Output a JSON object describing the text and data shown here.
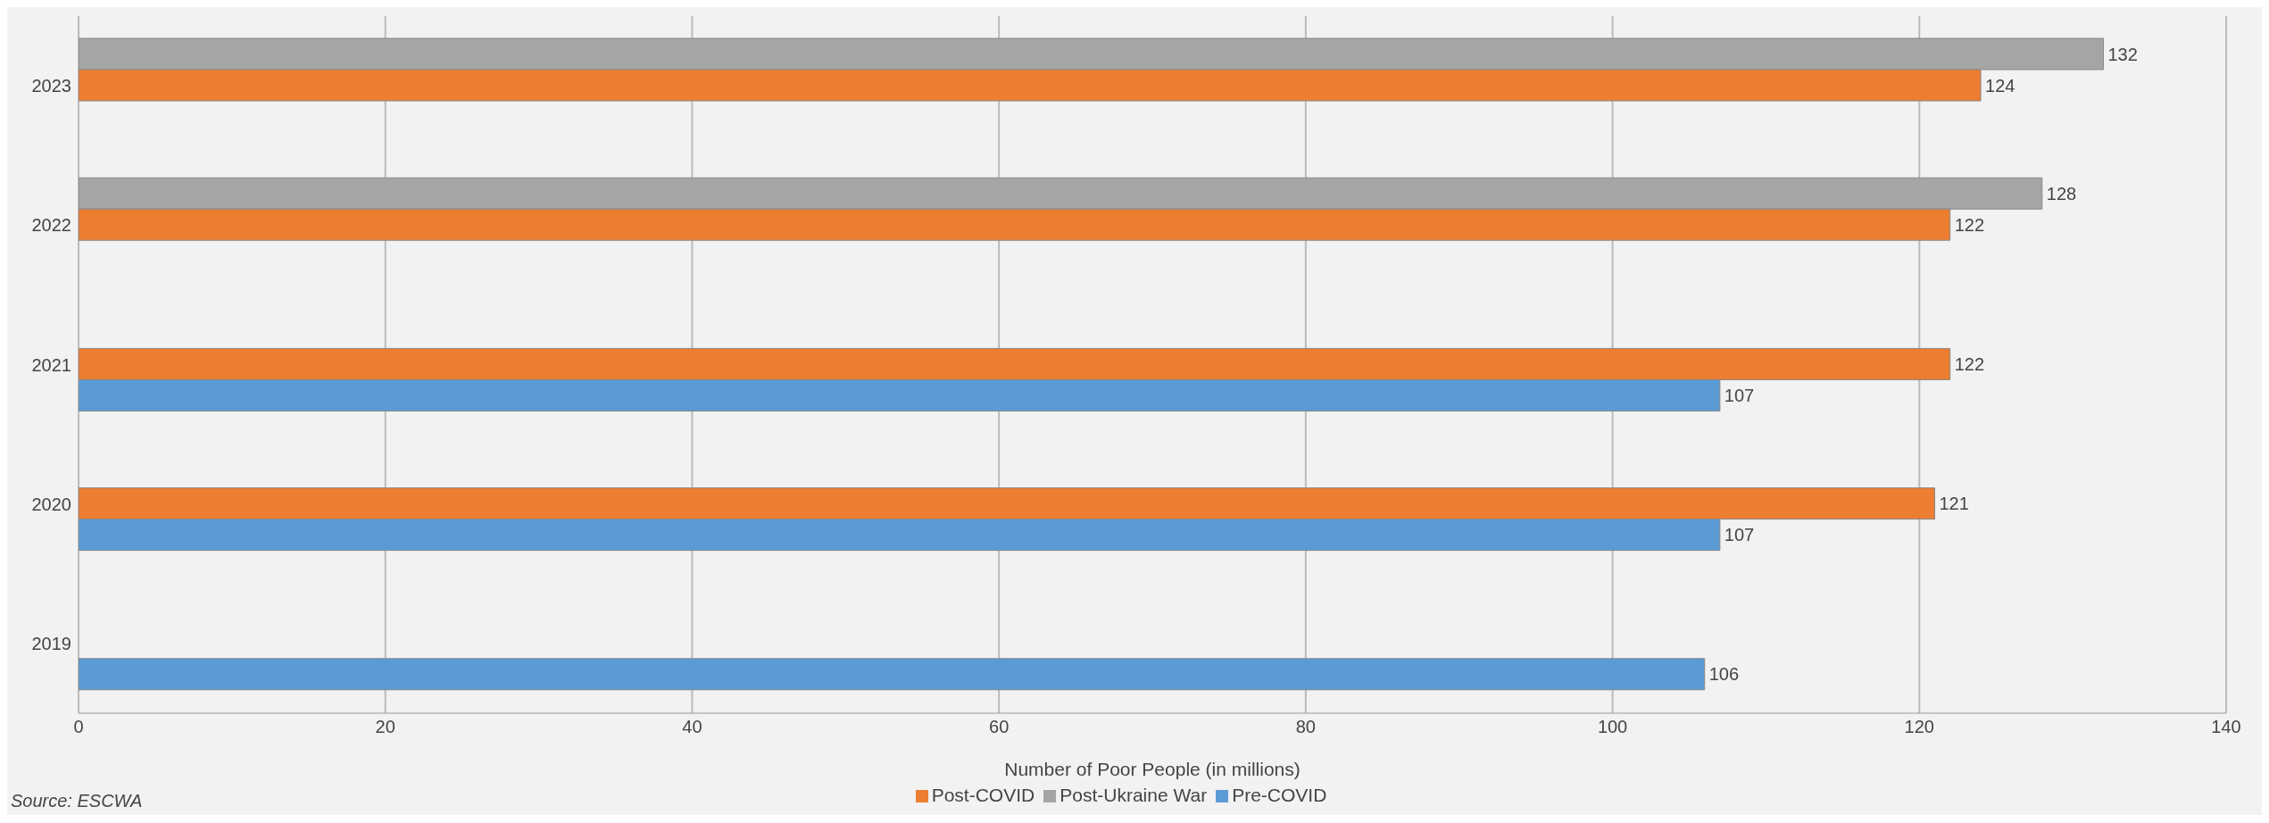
{
  "chart_data": {
    "type": "bar",
    "orientation": "horizontal",
    "xlabel": "Number of Poor People (in millions)",
    "categories": [
      "2023",
      "2022",
      "2021",
      "2020",
      "2019"
    ],
    "series": [
      {
        "name": "Pre-COVID",
        "color": "#5b9bd5",
        "values": [
          null,
          null,
          107,
          107,
          106
        ]
      },
      {
        "name": "Post-COVID",
        "color": "#ed7d31",
        "values": [
          124,
          122,
          122,
          121,
          null
        ]
      },
      {
        "name": "Post-Ukraine War",
        "color": "#a5a5a5",
        "values": [
          132,
          128,
          null,
          null,
          null
        ]
      }
    ],
    "xlim": [
      0,
      140
    ],
    "xticks": [
      0,
      20,
      40,
      60,
      80,
      100,
      120,
      140
    ],
    "grid": "x",
    "legend": "bottom",
    "data_labels": true,
    "annotations": [
      "Source: ESCWA"
    ]
  }
}
